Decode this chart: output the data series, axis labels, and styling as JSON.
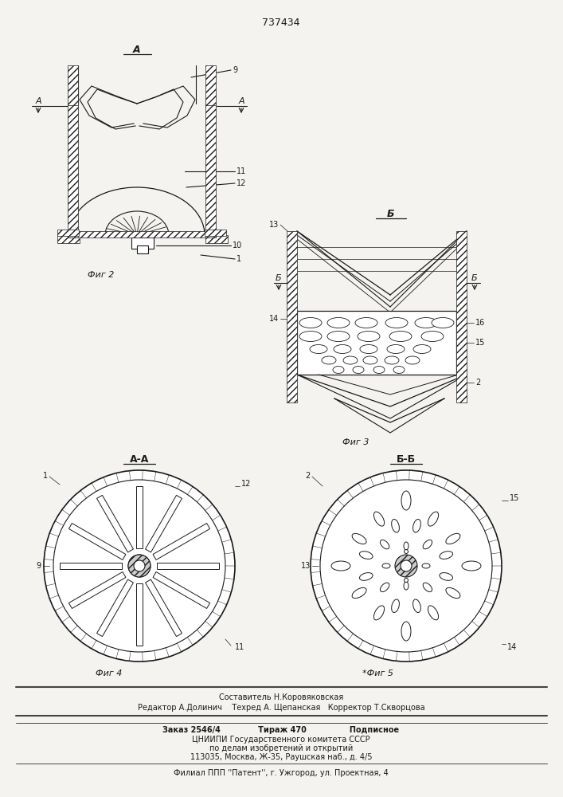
{
  "title": "737434",
  "bg_color": "#f5f3ef",
  "line_color": "#1a1a1a",
  "footer_lines": [
    "Составитель Н.Коровяковская",
    "Редактор А.Долинич    Техред А. Щепанская   Корректор Т.Скворцова",
    "Заказ 2546/4              Тираж 470                Подписное",
    "ЦНИИПИ Государственного комитета СССР",
    "по делам изобретений и открытий",
    "113035, Москва, Ж-35, Раушская наб., д. 4/5",
    "Филиал ППП ''Патент'', г. Ужгород, ул. Проектная, 4"
  ]
}
